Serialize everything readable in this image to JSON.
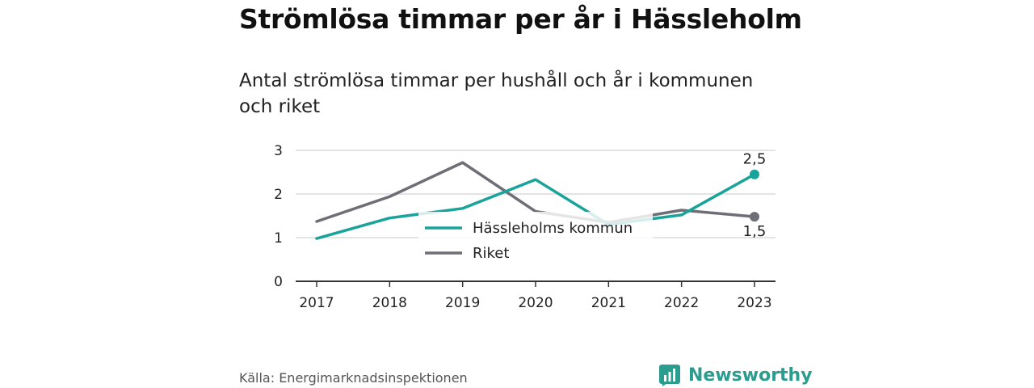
{
  "header": {
    "title": "Strömlösa timmar per år i Hässleholm",
    "subtitle": "Antal strömlösa timmar per hushåll och år i kommunen och riket"
  },
  "chart_data": {
    "type": "line",
    "x": [
      "2017",
      "2018",
      "2019",
      "2020",
      "2021",
      "2022",
      "2023"
    ],
    "ylim": [
      0,
      3
    ],
    "yticks": [
      "0",
      "1",
      "2",
      "3"
    ],
    "grid": true,
    "legend_position": "center",
    "series": [
      {
        "name": "Hässleholms kommun",
        "color": "#1aa39a",
        "values": [
          0.98,
          1.45,
          1.67,
          2.33,
          1.3,
          1.52,
          2.45
        ],
        "end_label": "2,5"
      },
      {
        "name": "Riket",
        "color": "#6e6e76",
        "values": [
          1.37,
          1.94,
          2.72,
          1.6,
          1.35,
          1.63,
          1.48
        ],
        "end_label": "1,5"
      }
    ]
  },
  "footer": {
    "source": "Källa: Energimarknadsinspektionen",
    "brand": "Newsworthy",
    "brand_color": "#2a9d8f"
  }
}
